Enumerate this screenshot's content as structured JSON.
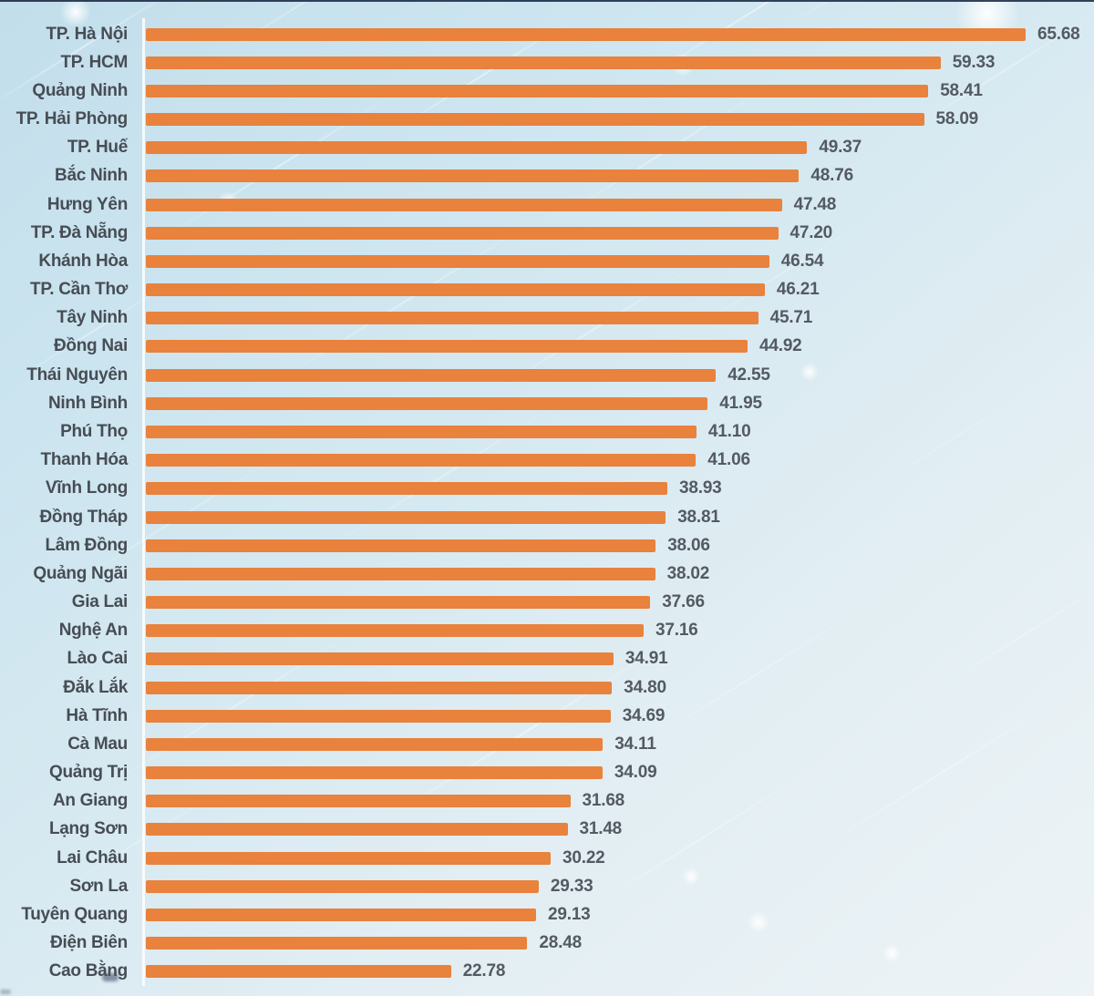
{
  "chart_data": {
    "type": "bar",
    "orientation": "horizontal",
    "title": "",
    "xlabel": "",
    "ylabel": "",
    "xlim": [
      0,
      70
    ],
    "grid": false,
    "legend": false,
    "bar_color": "#e8823c",
    "label_color": "#474d55",
    "value_color": "#545a62",
    "categories": [
      "TP. Hà Nội",
      "TP. HCM",
      "Quảng Ninh",
      "TP. Hải Phòng",
      "TP. Huế",
      "Bắc Ninh",
      "Hưng Yên",
      "TP. Đà Nẵng",
      "Khánh Hòa",
      "TP. Cần Thơ",
      "Tây Ninh",
      "Đồng Nai",
      "Thái Nguyên",
      "Ninh Bình",
      "Phú Thọ",
      "Thanh Hóa",
      "Vĩnh Long",
      "Đồng Tháp",
      "Lâm Đồng",
      "Quảng Ngãi",
      "Gia Lai",
      "Nghệ An",
      "Lào Cai",
      "Đắk Lắk",
      "Hà Tĩnh",
      "Cà Mau",
      "Quảng Trị",
      "An Giang",
      "Lạng Sơn",
      "Lai Châu",
      "Sơn La",
      "Tuyên Quang",
      "Điện Biên",
      "Cao Bằng"
    ],
    "values": [
      65.68,
      59.33,
      58.41,
      58.09,
      49.37,
      48.76,
      47.48,
      47.2,
      46.54,
      46.21,
      45.71,
      44.92,
      42.55,
      41.95,
      41.1,
      41.06,
      38.93,
      38.81,
      38.06,
      38.02,
      37.66,
      37.16,
      34.91,
      34.8,
      34.69,
      34.11,
      34.09,
      31.68,
      31.48,
      30.22,
      29.33,
      29.13,
      28.48,
      22.78
    ],
    "value_labels": [
      "65.68",
      "59.33",
      "58.41",
      "58.09",
      "49.37",
      "48.76",
      "47.48",
      "47.20",
      "46.54",
      "46.21",
      "45.71",
      "44.92",
      "42.55",
      "41.95",
      "41.10",
      "41.06",
      "38.93",
      "38.81",
      "38.06",
      "38.02",
      "37.66",
      "37.16",
      "34.91",
      "34.80",
      "34.69",
      "34.11",
      "34.09",
      "31.68",
      "31.48",
      "30.22",
      "29.33",
      "29.13",
      "28.48",
      "22.78"
    ]
  },
  "background": {
    "top_color": "#c2deeb",
    "bottom_color": "#edf3f6",
    "streak_color": "#ffffff",
    "top_edge_color": "#14223d"
  }
}
